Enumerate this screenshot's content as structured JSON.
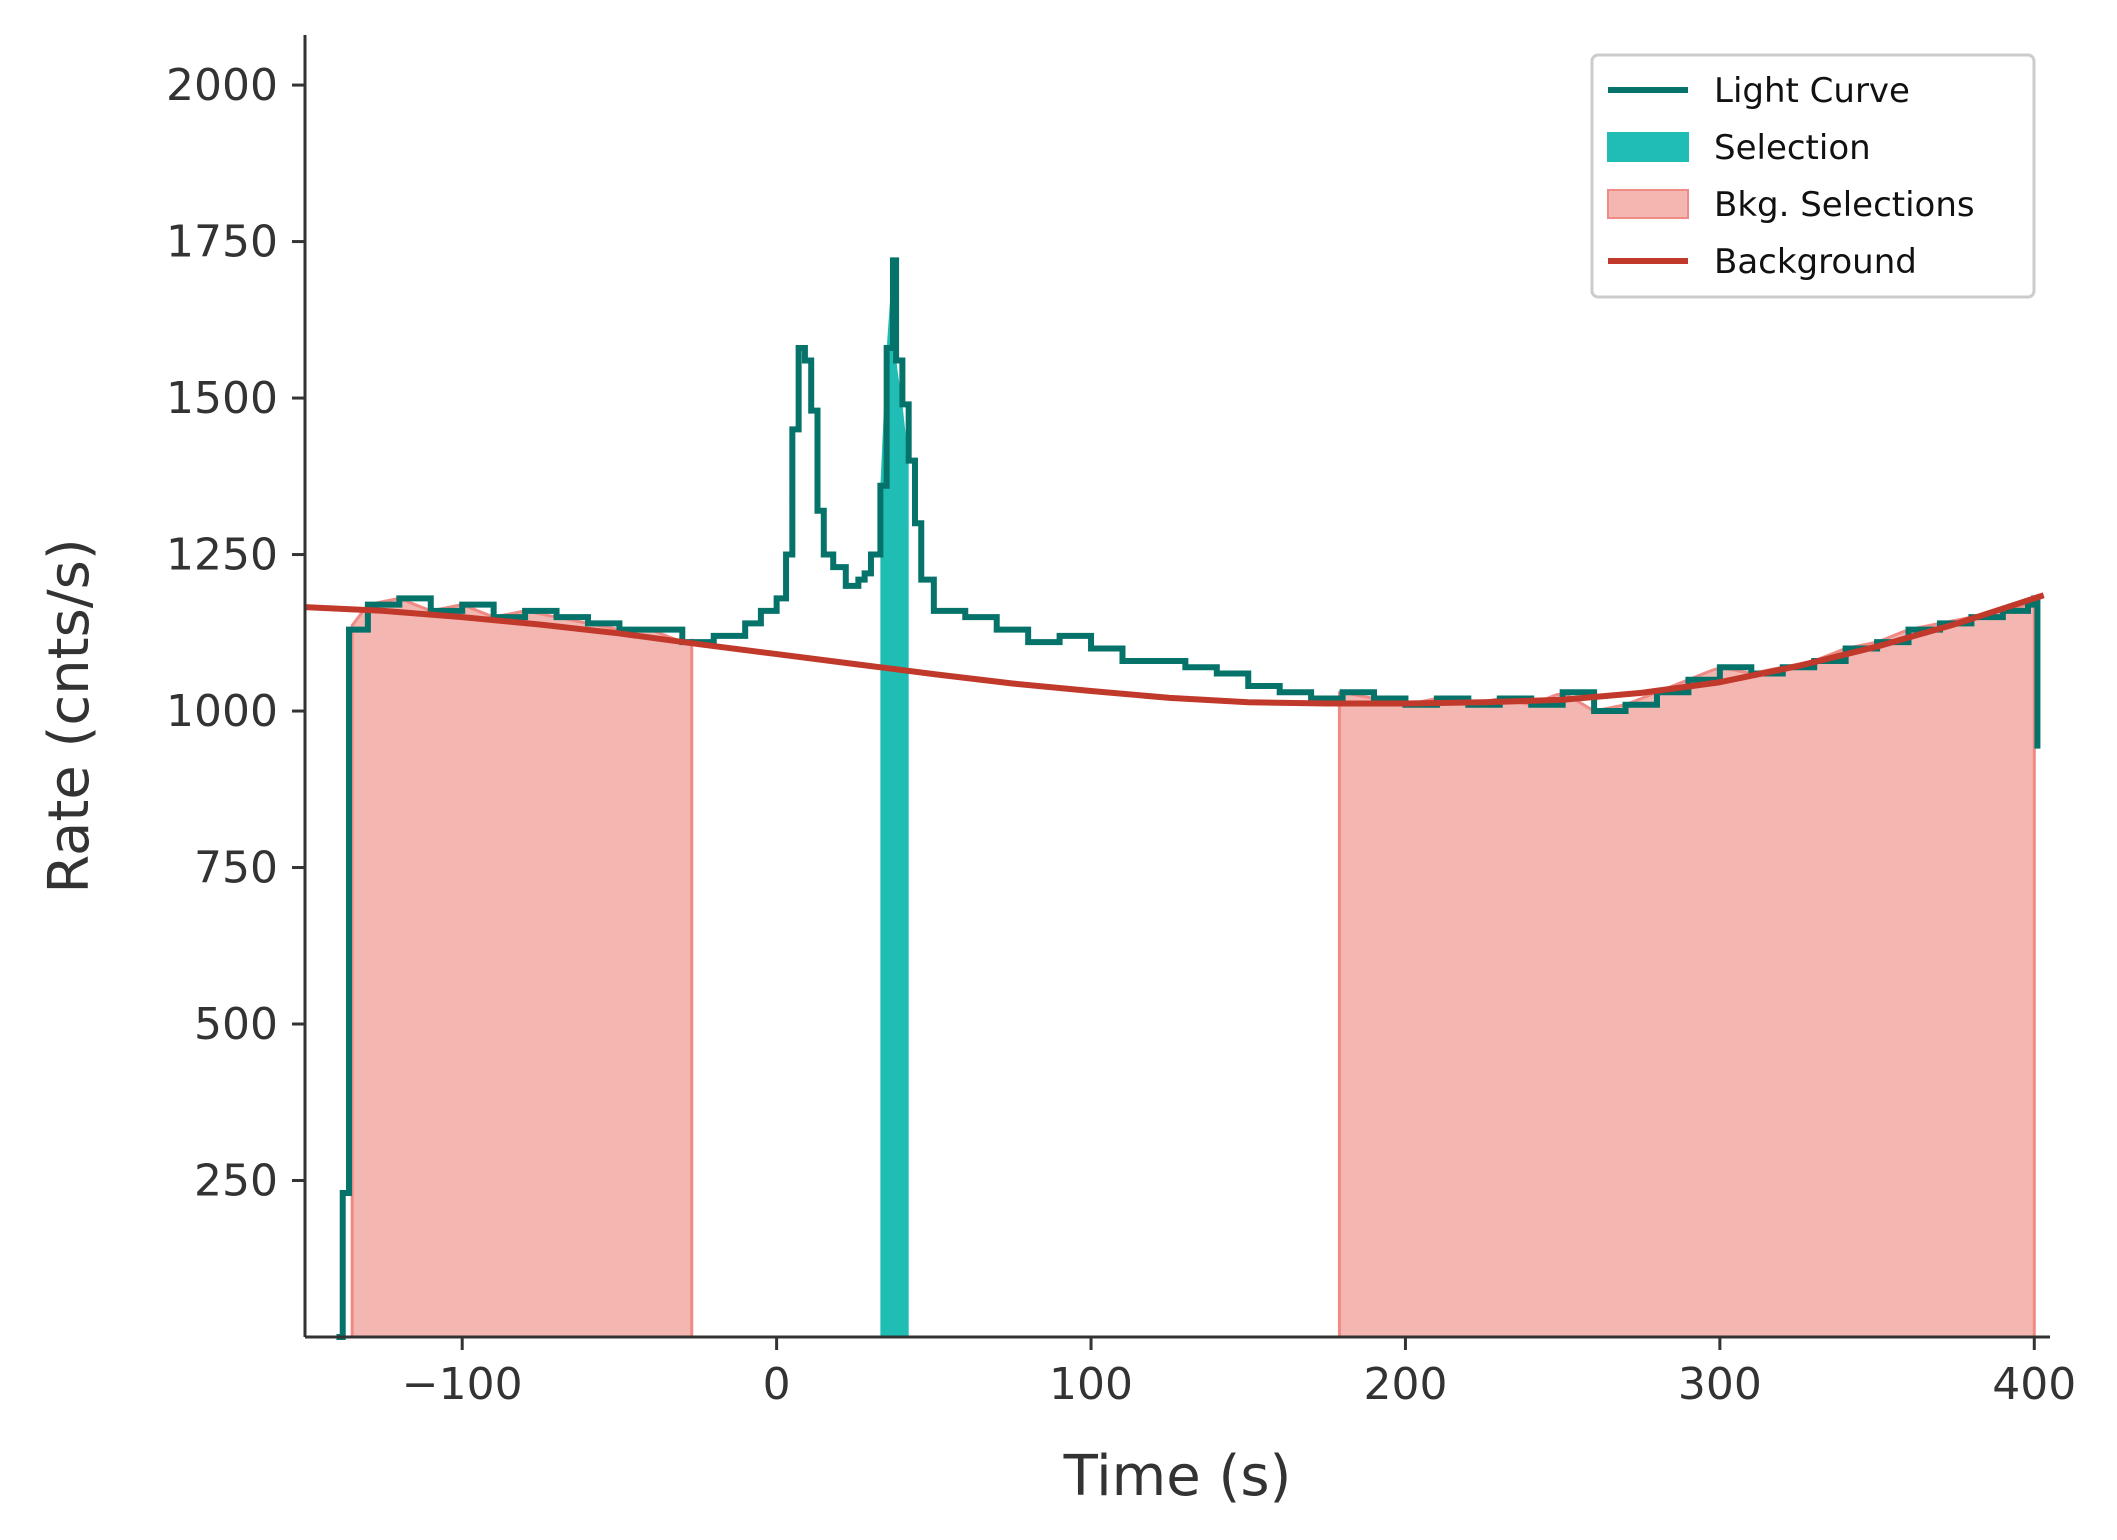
{
  "chart_data": {
    "type": "line",
    "xlabel": "Time (s)",
    "ylabel": "Rate (cnts/s)",
    "xlim": [
      -150,
      405
    ],
    "ylim": [
      0,
      2080
    ],
    "x_ticks": [
      -100,
      0,
      100,
      200,
      300,
      400
    ],
    "x_tick_labels": [
      "−100",
      "0",
      "100",
      "200",
      "300",
      "400"
    ],
    "y_ticks": [
      250,
      500,
      750,
      1000,
      1250,
      1500,
      1750,
      2000
    ],
    "y_tick_labels": [
      "250",
      "500",
      "750",
      "1000",
      "1250",
      "1500",
      "1750",
      "2000"
    ],
    "grid": false,
    "legend_position": "top-right",
    "colors": {
      "light_curve": "#06736b",
      "selection": "#20bdb4",
      "bkg_selection_fill": "#f4b6b1",
      "bkg_selection_edge": "#f08a85",
      "background": "#c0392b",
      "axis": "#333333"
    },
    "legend": [
      {
        "label": "Light Curve",
        "kind": "line",
        "color": "#06736b"
      },
      {
        "label": "Selection",
        "kind": "patch",
        "color": "#20bdb4"
      },
      {
        "label": "Bkg. Selections",
        "kind": "patch",
        "color": "#f4b6b1"
      },
      {
        "label": "Background",
        "kind": "line",
        "color": "#c0392b"
      }
    ],
    "series": [
      {
        "name": "Light Curve",
        "x": [
          -140,
          -138,
          -136,
          -130,
          -120,
          -110,
          -100,
          -90,
          -80,
          -70,
          -60,
          -50,
          -40,
          -30,
          -20,
          -10,
          -5,
          0,
          3,
          5,
          7,
          9,
          11,
          13,
          15,
          18,
          22,
          26,
          28,
          30,
          33,
          35,
          37,
          38,
          40,
          42,
          44,
          46,
          50,
          55,
          60,
          70,
          80,
          90,
          100,
          110,
          120,
          130,
          140,
          150,
          160,
          170,
          180,
          190,
          200,
          210,
          220,
          230,
          240,
          250,
          260,
          270,
          280,
          290,
          300,
          310,
          320,
          330,
          340,
          350,
          360,
          370,
          380,
          390,
          398,
          400,
          401
        ],
        "y": [
          0,
          230,
          1130,
          1170,
          1180,
          1160,
          1170,
          1150,
          1160,
          1150,
          1140,
          1130,
          1130,
          1110,
          1120,
          1140,
          1160,
          1180,
          1250,
          1450,
          1580,
          1560,
          1480,
          1320,
          1250,
          1230,
          1200,
          1210,
          1220,
          1250,
          1360,
          1580,
          1720,
          1560,
          1490,
          1400,
          1300,
          1210,
          1160,
          1160,
          1150,
          1130,
          1110,
          1120,
          1100,
          1080,
          1080,
          1070,
          1060,
          1040,
          1030,
          1020,
          1030,
          1020,
          1010,
          1020,
          1010,
          1020,
          1010,
          1030,
          1000,
          1010,
          1030,
          1050,
          1070,
          1060,
          1070,
          1080,
          1100,
          1110,
          1130,
          1140,
          1150,
          1160,
          1170,
          1180,
          940
        ]
      },
      {
        "name": "Background",
        "x": [
          -150,
          -125,
          -100,
          -75,
          -50,
          -25,
          0,
          25,
          50,
          75,
          100,
          125,
          150,
          175,
          200,
          225,
          250,
          275,
          300,
          325,
          350,
          375,
          403
        ],
        "y": [
          1166,
          1160,
          1150,
          1138,
          1124,
          1107,
          1091,
          1075,
          1059,
          1044,
          1032,
          1021,
          1014,
          1012,
          1012,
          1014,
          1018,
          1029,
          1046,
          1072,
          1103,
          1139,
          1185
        ]
      }
    ],
    "selection": {
      "x_range": [
        33,
        42
      ]
    },
    "bkg_selections": [
      {
        "x_range": [
          -135,
          -27
        ]
      },
      {
        "x_range": [
          179,
          400
        ]
      }
    ]
  }
}
